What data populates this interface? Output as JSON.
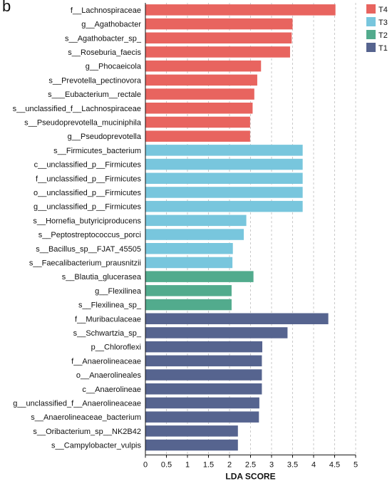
{
  "panel_label": "b",
  "chart_data": {
    "type": "bar",
    "orientation": "horizontal",
    "xlabel": "LDA SCORE",
    "xlim": [
      0,
      5
    ],
    "xticks": [
      "0",
      "0.5",
      "1",
      "1.5",
      "2",
      "2.5",
      "3",
      "3.5",
      "4",
      "4.5",
      "5"
    ],
    "grid": "vertical dashed",
    "legend_position": "top-right",
    "groups": [
      {
        "name": "T4",
        "color": "#e8645f"
      },
      {
        "name": "T3",
        "color": "#78c6dd"
      },
      {
        "name": "T2",
        "color": "#52ab8d"
      },
      {
        "name": "T1",
        "color": "#56648f"
      }
    ],
    "bars": [
      {
        "label": "f__Lachnospiraceae",
        "value": 4.52,
        "group": "T4"
      },
      {
        "label": "g__Agathobacter",
        "value": 3.5,
        "group": "T4"
      },
      {
        "label": "s__Agathobacter_sp_",
        "value": 3.48,
        "group": "T4"
      },
      {
        "label": "s__Roseburia_faecis",
        "value": 3.44,
        "group": "T4"
      },
      {
        "label": "g__Phocaeicola",
        "value": 2.75,
        "group": "T4"
      },
      {
        "label": "s__Prevotella_pectinovora",
        "value": 2.66,
        "group": "T4"
      },
      {
        "label": "s___Eubacterium__rectale",
        "value": 2.59,
        "group": "T4"
      },
      {
        "label": "s__unclassified_f__Lachnospiraceae",
        "value": 2.55,
        "group": "T4"
      },
      {
        "label": "s__Pseudoprevotella_muciniphila",
        "value": 2.49,
        "group": "T4"
      },
      {
        "label": "g__Pseudoprevotella",
        "value": 2.49,
        "group": "T4"
      },
      {
        "label": "s__Firmicutes_bacterium",
        "value": 3.74,
        "group": "T3"
      },
      {
        "label": "c__unclassified_p__Firmicutes",
        "value": 3.74,
        "group": "T3"
      },
      {
        "label": "f__unclassified_p__Firmicutes",
        "value": 3.74,
        "group": "T3"
      },
      {
        "label": "o__unclassified_p__Firmicutes",
        "value": 3.74,
        "group": "T3"
      },
      {
        "label": "g__unclassified_p__Firmicutes",
        "value": 3.74,
        "group": "T3"
      },
      {
        "label": "s__Hornefia_butyriciproducens",
        "value": 2.4,
        "group": "T3"
      },
      {
        "label": "s__Peptostreptococcus_porci",
        "value": 2.34,
        "group": "T3"
      },
      {
        "label": "s__Bacillus_sp__FJAT_45505",
        "value": 2.08,
        "group": "T3"
      },
      {
        "label": "s__Faecalibacterium_prausnitzii",
        "value": 2.07,
        "group": "T3"
      },
      {
        "label": "s__Blautia_glucerasea",
        "value": 2.57,
        "group": "T2"
      },
      {
        "label": "g__Flexilinea",
        "value": 2.05,
        "group": "T2"
      },
      {
        "label": "s__Flexilinea_sp_",
        "value": 2.05,
        "group": "T2"
      },
      {
        "label": "f__Muribaculaceae",
        "value": 4.35,
        "group": "T1"
      },
      {
        "label": "s__Schwartzia_sp_",
        "value": 3.38,
        "group": "T1"
      },
      {
        "label": "p__Chloroflexi",
        "value": 2.78,
        "group": "T1"
      },
      {
        "label": "f__Anaerolineaceae",
        "value": 2.77,
        "group": "T1"
      },
      {
        "label": "o__Anaerolineales",
        "value": 2.77,
        "group": "T1"
      },
      {
        "label": "c__Anaerolineae",
        "value": 2.77,
        "group": "T1"
      },
      {
        "label": "g__unclassified_f__Anaerolineaceae",
        "value": 2.71,
        "group": "T1"
      },
      {
        "label": "s__Anaerolineaceae_bacterium",
        "value": 2.7,
        "group": "T1"
      },
      {
        "label": "s__Oribacterium_sp__NK2B42",
        "value": 2.2,
        "group": "T1"
      },
      {
        "label": "s__Campylobacter_vulpis",
        "value": 2.2,
        "group": "T1"
      }
    ]
  }
}
